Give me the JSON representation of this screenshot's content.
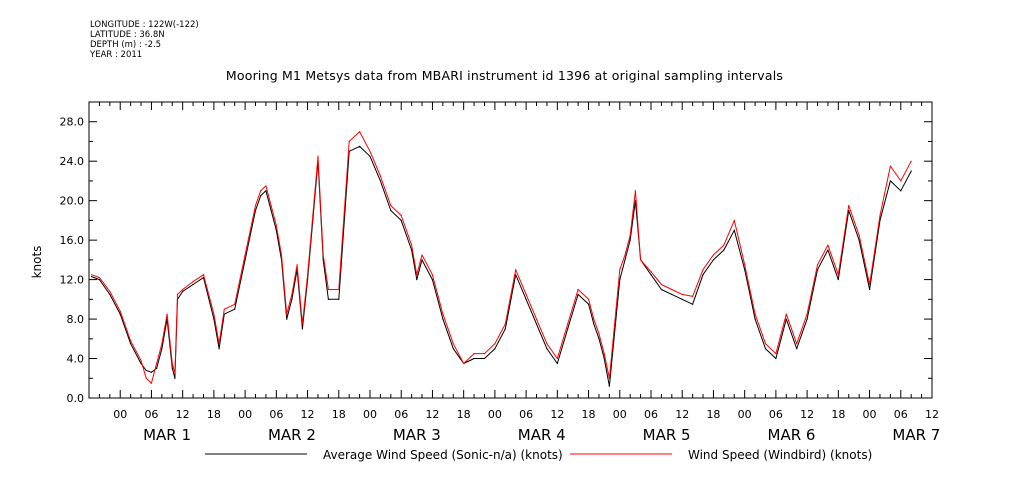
{
  "meta": {
    "longitude": "LONGITUDE : 122W(-122)",
    "latitude": "LATITUDE : 36.8N",
    "depth": "DEPTH (m) : -2.5",
    "year": "YEAR : 2011"
  },
  "colors": {
    "series_black": "#000000",
    "series_red": "#ff0000",
    "axis": "#000000",
    "background": "#ffffff"
  },
  "chart_data": {
    "type": "line",
    "title": "Mooring M1 Metsys data from MBARI instrument id 1396 at original sampling intervals",
    "ylabel": "knots",
    "ylim": [
      0,
      30
    ],
    "yticks": [
      "0.0",
      "4.0",
      "8.0",
      "12.0",
      "16.0",
      "20.0",
      "24.0",
      "28.0"
    ],
    "xlim_hours": [
      -6,
      156
    ],
    "hour_tick_labels": [
      "00",
      "06",
      "12",
      "18"
    ],
    "day_labels": [
      "MAR  1",
      "MAR  2",
      "MAR  3",
      "MAR  4",
      "MAR  5",
      "MAR  6",
      "MAR  7"
    ],
    "grid": false,
    "legend_placement": "bottom",
    "series": [
      {
        "name": "Average Wind Speed (Sonic-n/a) (knots)",
        "color": "#000000",
        "x_hours": [
          -5.5,
          -4,
          -2,
          0,
          2,
          4,
          5,
          6,
          7,
          8,
          9,
          10,
          10.5,
          11,
          12,
          14,
          16,
          18,
          19,
          20,
          22,
          24,
          26,
          27,
          28,
          29,
          30,
          31,
          32,
          33,
          34,
          35,
          36,
          37,
          38,
          39,
          40,
          42,
          44,
          46,
          48,
          50,
          52,
          54,
          56,
          57,
          58,
          60,
          62,
          64,
          66,
          68,
          70,
          72,
          74,
          76,
          78,
          80,
          82,
          84,
          86,
          88,
          90,
          91,
          92,
          93,
          94,
          96,
          97,
          98,
          99,
          100,
          102,
          104,
          106,
          108,
          110,
          112,
          114,
          116,
          118,
          120,
          122,
          124,
          126,
          128,
          130,
          132,
          134,
          136,
          138,
          140,
          142,
          144,
          146,
          148,
          150,
          152
        ],
        "y": [
          12.3,
          12,
          10.5,
          8.5,
          5.5,
          3.5,
          2.8,
          2.6,
          3,
          5,
          8,
          3,
          2,
          10,
          10.8,
          11.5,
          12.2,
          8,
          5,
          8.5,
          9,
          14,
          19,
          20.5,
          21,
          19,
          17,
          14,
          8,
          10,
          13,
          7,
          12,
          18,
          24,
          14,
          10,
          10,
          25,
          25.5,
          24.5,
          22,
          19,
          18,
          15,
          12,
          14,
          12,
          8,
          5,
          3.5,
          4,
          4,
          5,
          7,
          12.5,
          10,
          7.5,
          5,
          3.5,
          7,
          10.5,
          9.5,
          7.5,
          6,
          4,
          1.2,
          12,
          14,
          16,
          20,
          14,
          12.5,
          11,
          10.5,
          10,
          9.5,
          12.5,
          14,
          15,
          17,
          13,
          8,
          5,
          4,
          8,
          5,
          8,
          13,
          15,
          12,
          19,
          16,
          11,
          18,
          22,
          21,
          23
        ]
      },
      {
        "name": "Wind Speed (Windbird) (knots)",
        "color": "#ff0000",
        "x_hours": [
          -5.5,
          -4,
          -2,
          0,
          2,
          4,
          5,
          6,
          7,
          8,
          9,
          10,
          10.5,
          11,
          12,
          14,
          16,
          18,
          19,
          20,
          22,
          24,
          26,
          27,
          28,
          29,
          30,
          31,
          32,
          33,
          34,
          35,
          36,
          37,
          38,
          39,
          40,
          42,
          44,
          46,
          48,
          50,
          52,
          54,
          56,
          57,
          58,
          60,
          62,
          64,
          66,
          68,
          70,
          72,
          74,
          76,
          78,
          80,
          82,
          84,
          86,
          88,
          90,
          91,
          92,
          93,
          94,
          96,
          97,
          98,
          99,
          100,
          102,
          104,
          106,
          108,
          110,
          112,
          114,
          116,
          118,
          120,
          122,
          124,
          126,
          128,
          130,
          132,
          134,
          136,
          138,
          140,
          142,
          144,
          146,
          148,
          150,
          152
        ],
        "y": [
          12.5,
          12.2,
          10.8,
          8.8,
          5.8,
          3.8,
          2,
          1.5,
          3.5,
          5.5,
          8.5,
          3.5,
          2.5,
          10.5,
          11,
          11.8,
          12.5,
          8.5,
          5.5,
          9,
          9.5,
          14.5,
          19.5,
          21,
          21.5,
          19.5,
          17.5,
          14.5,
          8.5,
          10.5,
          13.5,
          7.5,
          12.5,
          18.5,
          24.5,
          14.5,
          11,
          11,
          26,
          27,
          25,
          22.5,
          19.5,
          18.5,
          15.5,
          12.5,
          14.5,
          12.5,
          8.5,
          5.5,
          3.5,
          4.5,
          4.5,
          5.5,
          7.5,
          13,
          10.5,
          8,
          5.5,
          4,
          7.5,
          11,
          10,
          8,
          6.5,
          4.5,
          2,
          13,
          14.5,
          16.5,
          21,
          14,
          12.8,
          11.5,
          11,
          10.5,
          10.3,
          13,
          14.5,
          15.5,
          18,
          13.5,
          8.5,
          5.5,
          4.5,
          8.5,
          5.5,
          8.5,
          13.5,
          15.5,
          12.5,
          19.5,
          16.5,
          11.5,
          18.5,
          23.5,
          22,
          24
        ]
      }
    ]
  }
}
